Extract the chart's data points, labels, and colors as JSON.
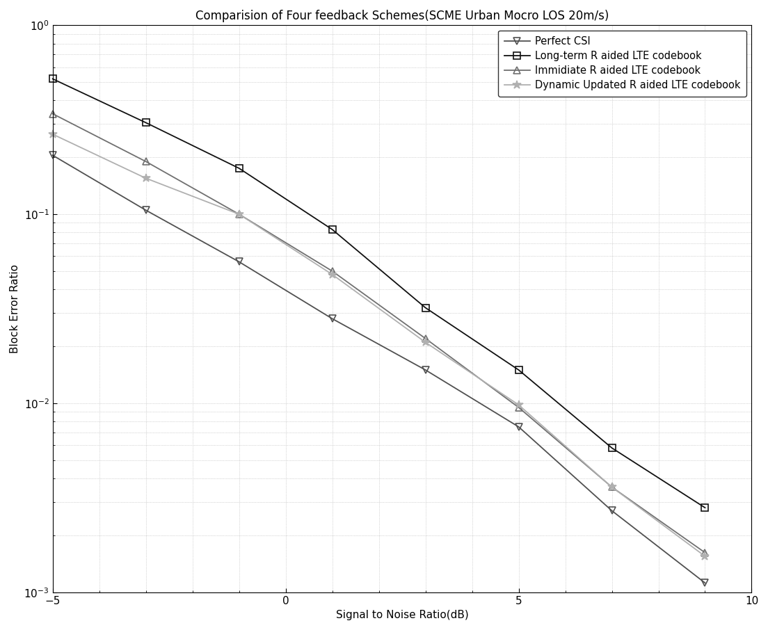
{
  "title": "Comparision of Four feedback Schemes(SCME Urban Mocro LOS 20m/s)",
  "xlabel": "Signal to Noise Ratio(dB)",
  "ylabel": "Block Error Ratio",
  "xlim": [
    -5,
    10
  ],
  "ylim_log": [
    0.001,
    1.0
  ],
  "series": [
    {
      "label": "Perfect CSI",
      "color": "#505050",
      "marker": "v",
      "markersize": 7,
      "linewidth": 1.3,
      "x": [
        -5,
        -3,
        -1,
        1,
        3,
        5,
        7,
        9
      ],
      "y": [
        0.205,
        0.105,
        0.056,
        0.028,
        0.015,
        0.0075,
        0.0027,
        0.00112
      ]
    },
    {
      "label": "Long-term R aided LTE codebook",
      "color": "#101010",
      "marker": "s",
      "markersize": 7,
      "linewidth": 1.3,
      "x": [
        -5,
        -3,
        -1,
        1,
        3,
        5,
        7,
        9
      ],
      "y": [
        0.52,
        0.305,
        0.175,
        0.083,
        0.032,
        0.015,
        0.0058,
        0.0028
      ]
    },
    {
      "label": "Immidiate R aided LTE codebook",
      "color": "#707070",
      "marker": "^",
      "markersize": 7,
      "linewidth": 1.3,
      "x": [
        -5,
        -3,
        -1,
        1,
        3,
        5,
        7,
        9
      ],
      "y": [
        0.34,
        0.19,
        0.1,
        0.05,
        0.022,
        0.0095,
        0.0036,
        0.00162
      ]
    },
    {
      "label": "Dynamic Updated R aided LTE codebook",
      "color": "#b0b0b0",
      "marker": "*",
      "markersize": 9,
      "linewidth": 1.3,
      "x": [
        -5,
        -3,
        -1,
        1,
        3,
        5,
        7,
        9
      ],
      "y": [
        0.265,
        0.155,
        0.1,
        0.048,
        0.021,
        0.0098,
        0.0036,
        0.00155
      ]
    }
  ],
  "background_color": "#ffffff",
  "grid_color": "#aaaaaa",
  "title_fontsize": 12,
  "label_fontsize": 11,
  "tick_fontsize": 11,
  "legend_fontsize": 10.5
}
